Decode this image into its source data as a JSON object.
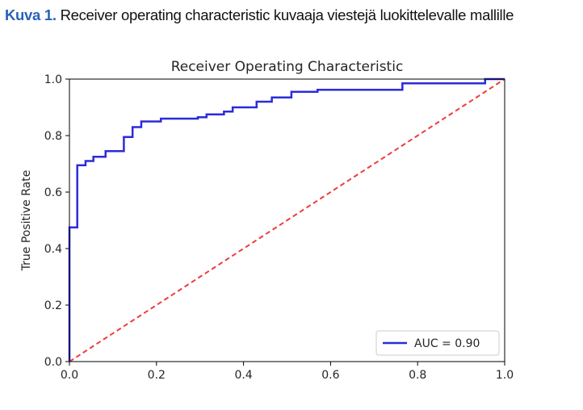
{
  "caption": {
    "label": "Kuva 1.",
    "text": "Receiver operating characteristic kuvaaja viestejä luokittelevalle mallille",
    "label_color": "#2a62b8"
  },
  "chart_data": {
    "type": "line",
    "title": "Receiver Operating Characteristic",
    "xlabel": "",
    "ylabel": "True Positive Rate",
    "xlim": [
      0.0,
      1.0
    ],
    "ylim": [
      0.0,
      1.0
    ],
    "x_ticks": [
      "0.0",
      "0.2",
      "0.4",
      "0.6",
      "0.8",
      "1.0"
    ],
    "y_ticks": [
      "0.0",
      "0.2",
      "0.4",
      "0.6",
      "0.8",
      "1.0"
    ],
    "grid": false,
    "legend_position": "lower-right",
    "series": [
      {
        "name": "AUC = 0.90",
        "color": "#2b2bdb",
        "style": "solid",
        "step": true,
        "points": [
          [
            0.0,
            0.0
          ],
          [
            0.0,
            0.475
          ],
          [
            0.018,
            0.475
          ],
          [
            0.018,
            0.695
          ],
          [
            0.037,
            0.695
          ],
          [
            0.037,
            0.71
          ],
          [
            0.055,
            0.71
          ],
          [
            0.055,
            0.725
          ],
          [
            0.083,
            0.725
          ],
          [
            0.083,
            0.745
          ],
          [
            0.125,
            0.745
          ],
          [
            0.125,
            0.795
          ],
          [
            0.145,
            0.795
          ],
          [
            0.145,
            0.83
          ],
          [
            0.165,
            0.83
          ],
          [
            0.165,
            0.85
          ],
          [
            0.21,
            0.85
          ],
          [
            0.21,
            0.86
          ],
          [
            0.295,
            0.86
          ],
          [
            0.295,
            0.865
          ],
          [
            0.315,
            0.865
          ],
          [
            0.315,
            0.875
          ],
          [
            0.355,
            0.875
          ],
          [
            0.355,
            0.885
          ],
          [
            0.375,
            0.885
          ],
          [
            0.375,
            0.9
          ],
          [
            0.43,
            0.9
          ],
          [
            0.43,
            0.92
          ],
          [
            0.465,
            0.92
          ],
          [
            0.465,
            0.935
          ],
          [
            0.51,
            0.935
          ],
          [
            0.51,
            0.955
          ],
          [
            0.57,
            0.955
          ],
          [
            0.57,
            0.962
          ],
          [
            0.765,
            0.962
          ],
          [
            0.765,
            0.985
          ],
          [
            0.955,
            0.985
          ],
          [
            0.955,
            1.0
          ],
          [
            1.0,
            1.0
          ]
        ]
      },
      {
        "name": "",
        "color": "#ef3b3b",
        "style": "dashed",
        "points": [
          [
            0.0,
            0.0
          ],
          [
            1.0,
            1.0
          ]
        ]
      }
    ]
  }
}
